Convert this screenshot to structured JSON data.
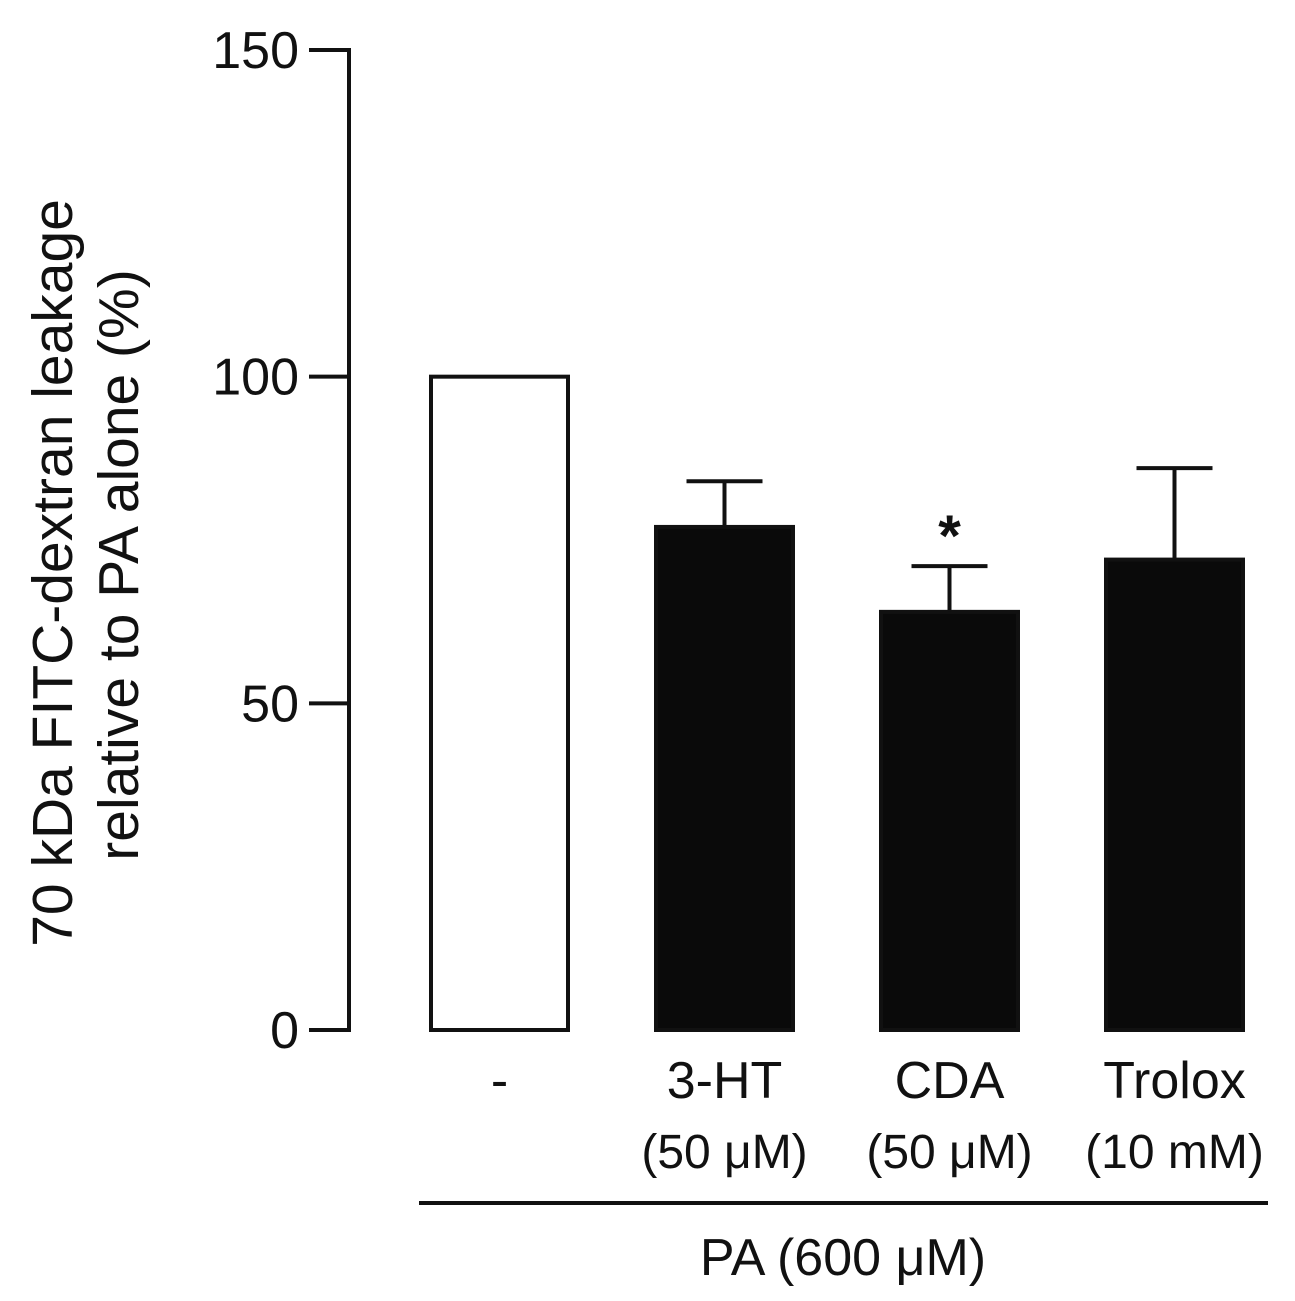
{
  "chart_data": {
    "type": "bar",
    "title": "",
    "ylabel_line1": "70 kDa FITC-dextran leakage",
    "ylabel_line2": "relative to PA alone (%)",
    "xlabel": "",
    "ylim": [
      0,
      150
    ],
    "yticks": [
      0,
      50,
      100,
      150
    ],
    "ytick_labels": [
      "0",
      "50",
      "100",
      "150"
    ],
    "categories": [
      {
        "line1": "-",
        "line2": ""
      },
      {
        "line1": "3-HT",
        "line2": "(50 μM)"
      },
      {
        "line1": "CDA",
        "line2": "(50 μM)"
      },
      {
        "line1": "Trolox",
        "line2": "(10 mM)"
      }
    ],
    "values": [
      100,
      77,
      64,
      72
    ],
    "errors": [
      0,
      7,
      7,
      14
    ],
    "fills": [
      "#ffffff",
      "#0a0a0a",
      "#0a0a0a",
      "#0a0a0a"
    ],
    "significance": [
      "",
      "",
      "*",
      ""
    ],
    "group_label": "PA (600 μM)"
  }
}
